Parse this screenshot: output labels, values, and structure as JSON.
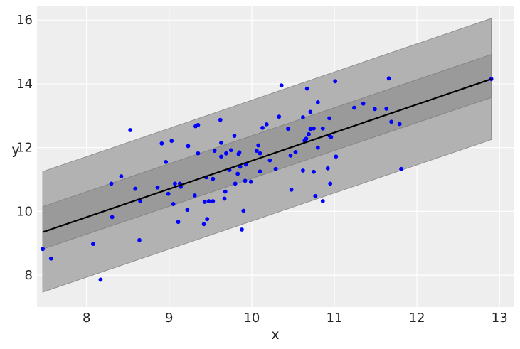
{
  "chart_data": {
    "type": "scatter",
    "title": "",
    "xlabel": "x",
    "ylabel": "y",
    "xlim": [
      7.4,
      13.17
    ],
    "ylim": [
      7.0,
      16.45
    ],
    "x_ticks": [
      8,
      9,
      10,
      11,
      12,
      13
    ],
    "y_ticks": [
      8,
      10,
      12,
      14,
      16
    ],
    "grid": true,
    "colors": {
      "background": "#eeeeee",
      "grid": "#ffffff",
      "points": "#0000ff",
      "line": "#000000",
      "band_outer": "#b2b2b2",
      "band_inner": "#9a9a9a"
    },
    "fit_line": {
      "x": [
        7.47,
        12.9
      ],
      "y": [
        9.35,
        14.15
      ]
    },
    "band_outer": {
      "x": [
        7.47,
        12.9
      ],
      "lower": [
        7.47,
        12.25
      ],
      "upper": [
        11.25,
        16.05
      ]
    },
    "band_inner": {
      "x": [
        7.47,
        12.9
      ],
      "lower": [
        8.82,
        13.57
      ],
      "upper": [
        10.15,
        14.92
      ]
    },
    "points": [
      [
        7.47,
        8.82
      ],
      [
        7.57,
        8.52
      ],
      [
        8.08,
        8.98
      ],
      [
        8.17,
        7.86
      ],
      [
        8.31,
        9.82
      ],
      [
        8.3,
        10.87
      ],
      [
        8.42,
        11.1
      ],
      [
        8.53,
        12.55
      ],
      [
        8.59,
        10.71
      ],
      [
        8.64,
        9.1
      ],
      [
        8.65,
        10.32
      ],
      [
        8.86,
        10.75
      ],
      [
        8.91,
        12.13
      ],
      [
        8.96,
        11.55
      ],
      [
        8.99,
        10.55
      ],
      [
        9.03,
        12.21
      ],
      [
        9.05,
        10.23
      ],
      [
        9.07,
        10.87
      ],
      [
        9.11,
        9.67
      ],
      [
        9.13,
        10.87
      ],
      [
        9.14,
        10.77
      ],
      [
        9.22,
        10.05
      ],
      [
        9.23,
        12.05
      ],
      [
        9.31,
        10.5
      ],
      [
        9.32,
        12.67
      ],
      [
        9.35,
        12.71
      ],
      [
        9.35,
        11.82
      ],
      [
        9.42,
        9.6
      ],
      [
        9.43,
        10.3
      ],
      [
        9.45,
        11.07
      ],
      [
        9.46,
        9.76
      ],
      [
        9.48,
        10.32
      ],
      [
        9.53,
        10.32
      ],
      [
        9.53,
        11.02
      ],
      [
        9.55,
        11.9
      ],
      [
        9.62,
        12.87
      ],
      [
        9.63,
        12.15
      ],
      [
        9.63,
        11.72
      ],
      [
        9.67,
        10.4
      ],
      [
        9.68,
        10.62
      ],
      [
        9.69,
        11.82
      ],
      [
        9.73,
        11.3
      ],
      [
        9.75,
        11.92
      ],
      [
        9.79,
        12.37
      ],
      [
        9.8,
        10.87
      ],
      [
        9.83,
        11.18
      ],
      [
        9.84,
        11.8
      ],
      [
        9.85,
        11.85
      ],
      [
        9.86,
        11.4
      ],
      [
        9.88,
        9.43
      ],
      [
        9.9,
        10.02
      ],
      [
        9.92,
        10.96
      ],
      [
        9.93,
        11.47
      ],
      [
        9.99,
        10.93
      ],
      [
        10.06,
        11.9
      ],
      [
        10.08,
        12.07
      ],
      [
        10.1,
        11.25
      ],
      [
        10.1,
        11.82
      ],
      [
        10.13,
        12.62
      ],
      [
        10.18,
        12.73
      ],
      [
        10.22,
        11.6
      ],
      [
        10.29,
        11.33
      ],
      [
        10.33,
        12.97
      ],
      [
        10.36,
        13.95
      ],
      [
        10.44,
        12.59
      ],
      [
        10.47,
        11.75
      ],
      [
        10.48,
        10.68
      ],
      [
        10.53,
        11.86
      ],
      [
        10.62,
        11.28
      ],
      [
        10.62,
        12.95
      ],
      [
        10.64,
        12.22
      ],
      [
        10.66,
        12.28
      ],
      [
        10.67,
        13.85
      ],
      [
        10.69,
        12.42
      ],
      [
        10.71,
        12.58
      ],
      [
        10.71,
        13.12
      ],
      [
        10.75,
        11.24
      ],
      [
        10.75,
        12.6
      ],
      [
        10.77,
        10.48
      ],
      [
        10.8,
        12.0
      ],
      [
        10.8,
        13.42
      ],
      [
        10.86,
        10.32
      ],
      [
        10.86,
        12.6
      ],
      [
        10.92,
        11.35
      ],
      [
        10.94,
        12.38
      ],
      [
        10.94,
        12.92
      ],
      [
        10.95,
        10.87
      ],
      [
        10.96,
        12.33
      ],
      [
        11.01,
        14.08
      ],
      [
        11.02,
        11.72
      ],
      [
        11.24,
        13.25
      ],
      [
        11.35,
        13.38
      ],
      [
        11.49,
        13.21
      ],
      [
        11.63,
        13.22
      ],
      [
        11.66,
        14.17
      ],
      [
        11.69,
        12.81
      ],
      [
        11.79,
        12.74
      ],
      [
        11.81,
        11.33
      ],
      [
        12.9,
        14.15
      ]
    ]
  }
}
